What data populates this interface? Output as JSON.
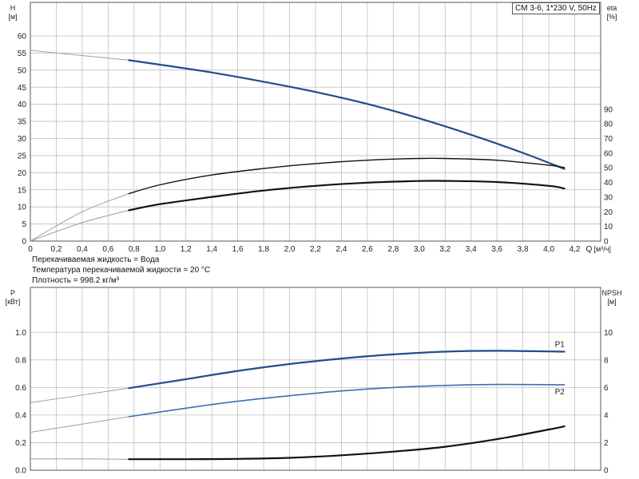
{
  "info": {
    "model": "CM 3-6, 1*230 V, 50Hz",
    "fluid": "Перекачиваемая жидкость = Вода",
    "temperature": "Температура перекачиваемой жидкости = 20 °C",
    "density": "Плотность = 998.2 кг/м³"
  },
  "colors": {
    "head": "#1f4e8c",
    "p1": "#1f4e8c",
    "p2": "#3b6fb0",
    "eta": "#111111",
    "npsh": "#111111",
    "grid": "#bfbfbf"
  },
  "chart_data": [
    {
      "type": "line",
      "name": "performance",
      "x_axis": {
        "label": "Q",
        "unit": "[м³/ч]",
        "ticks": [
          "0",
          "0,2",
          "0,4",
          "0,6",
          "0,8",
          "1,0",
          "1,2",
          "1,4",
          "1,6",
          "1,8",
          "2,0",
          "2,2",
          "2,4",
          "2,6",
          "2,8",
          "3,0",
          "3,2",
          "3,4",
          "3,6",
          "3,8",
          "4,0",
          "4,2"
        ],
        "xlim": [
          0,
          4.4
        ]
      },
      "y_left": {
        "label": "H",
        "unit": "[м]",
        "ylim": [
          0,
          60
        ],
        "ticks": [
          "0",
          "5",
          "10",
          "15",
          "20",
          "25",
          "30",
          "35",
          "40",
          "45",
          "50",
          "55",
          "60"
        ]
      },
      "y_right": {
        "label": "eta",
        "unit": "[%]",
        "ylim": [
          0,
          140
        ],
        "ticks": [
          "0",
          "10",
          "20",
          "30",
          "40",
          "50",
          "60",
          "70",
          "80",
          "90"
        ]
      },
      "grid": true,
      "series": [
        {
          "name": "H",
          "axis": "left",
          "extrapolated_until": 0.76,
          "x": [
            0,
            0.76,
            1.0,
            1.4,
            1.8,
            2.2,
            2.6,
            3.0,
            3.4,
            3.8,
            4.12
          ],
          "y": [
            55.8,
            52.9,
            51.6,
            49.3,
            46.6,
            43.6,
            40.1,
            35.9,
            31.1,
            25.8,
            21.1
          ]
        },
        {
          "name": "eta_upper",
          "axis": "right",
          "extrapolated_until": 0.76,
          "x": [
            0,
            0.4,
            0.76,
            1.0,
            1.4,
            1.8,
            2.2,
            2.6,
            3.0,
            3.2,
            3.6,
            4.0,
            4.12
          ],
          "y": [
            0,
            20,
            32.4,
            38.4,
            45.1,
            49.5,
            52.9,
            55.2,
            56.4,
            56.4,
            55.2,
            51.8,
            50.2
          ]
        },
        {
          "name": "eta_lower",
          "axis": "right",
          "extrapolated_until": 0.76,
          "x": [
            0,
            0.4,
            0.76,
            1.0,
            1.4,
            1.8,
            2.2,
            2.6,
            3.0,
            3.2,
            3.6,
            4.0,
            4.12
          ],
          "y": [
            0,
            12.6,
            21.0,
            25.2,
            30.1,
            34.5,
            37.7,
            39.9,
            41.0,
            41.1,
            40.3,
            37.7,
            35.9
          ]
        }
      ]
    },
    {
      "type": "line",
      "name": "power",
      "x_axis": {
        "xlim": [
          0,
          4.4
        ]
      },
      "y_left": {
        "label": "P",
        "unit": "[кВт]",
        "ylim": [
          0,
          1.1
        ],
        "ticks": [
          "0.0",
          "0.2",
          "0.4",
          "0.6",
          "0.8",
          "1.0"
        ]
      },
      "y_right": {
        "label": "NPSH",
        "unit": "[м]",
        "ylim": [
          0,
          11
        ],
        "ticks": [
          "0",
          "2",
          "4",
          "6",
          "8",
          "10"
        ]
      },
      "grid": true,
      "series": [
        {
          "name": "P1",
          "axis": "left",
          "extrapolated_until": 0.76,
          "x": [
            0,
            0.76,
            1.2,
            1.6,
            2.0,
            2.4,
            2.8,
            3.2,
            3.6,
            4.12
          ],
          "y": [
            0.49,
            0.595,
            0.66,
            0.72,
            0.77,
            0.81,
            0.84,
            0.86,
            0.866,
            0.86
          ]
        },
        {
          "name": "P2",
          "axis": "left",
          "extrapolated_until": 0.76,
          "x": [
            0,
            0.76,
            1.2,
            1.6,
            2.0,
            2.4,
            2.8,
            3.2,
            3.6,
            4.12
          ],
          "y": [
            0.275,
            0.388,
            0.45,
            0.5,
            0.54,
            0.575,
            0.6,
            0.615,
            0.622,
            0.62
          ]
        },
        {
          "name": "NPSH",
          "axis": "right",
          "extrapolated_until": 0.76,
          "x": [
            0,
            0.4,
            0.76,
            1.2,
            1.6,
            2.0,
            2.4,
            2.8,
            3.2,
            3.6,
            4.0,
            4.12
          ],
          "y": [
            0.82,
            0.82,
            0.8,
            0.8,
            0.82,
            0.9,
            1.08,
            1.35,
            1.7,
            2.25,
            2.95,
            3.18
          ]
        }
      ]
    }
  ]
}
